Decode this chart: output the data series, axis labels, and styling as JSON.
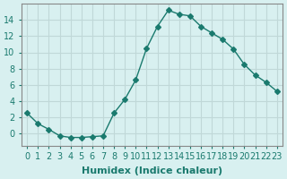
{
  "x": [
    0,
    1,
    2,
    3,
    4,
    5,
    6,
    7,
    8,
    9,
    10,
    11,
    12,
    13,
    14,
    15,
    16,
    17,
    18,
    19,
    20,
    21,
    22,
    23
  ],
  "y": [
    2.5,
    1.2,
    0.5,
    -0.3,
    -0.5,
    -0.5,
    -0.4,
    -0.3,
    2.5,
    4.2,
    6.6,
    10.5,
    13.2,
    15.2,
    14.7,
    14.5,
    13.2,
    12.4,
    11.6,
    10.4,
    8.5,
    7.2,
    6.3,
    5.2
  ],
  "line_color": "#1a7a6e",
  "marker": "D",
  "marker_size": 3,
  "bg_color": "#d8f0f0",
  "grid_color": "#c0d8d8",
  "xlabel": "Humidex (Indice chaleur)",
  "ylabel": "",
  "title": "",
  "xlim": [
    -0.5,
    23.5
  ],
  "ylim": [
    -1.5,
    16
  ],
  "yticks": [
    0,
    2,
    4,
    6,
    8,
    10,
    12,
    14
  ],
  "xticks": [
    0,
    1,
    2,
    3,
    4,
    5,
    6,
    7,
    8,
    9,
    10,
    11,
    12,
    13,
    14,
    15,
    16,
    17,
    18,
    19,
    20,
    21,
    22,
    23
  ],
  "tick_label_fontsize": 7,
  "xlabel_fontsize": 8
}
